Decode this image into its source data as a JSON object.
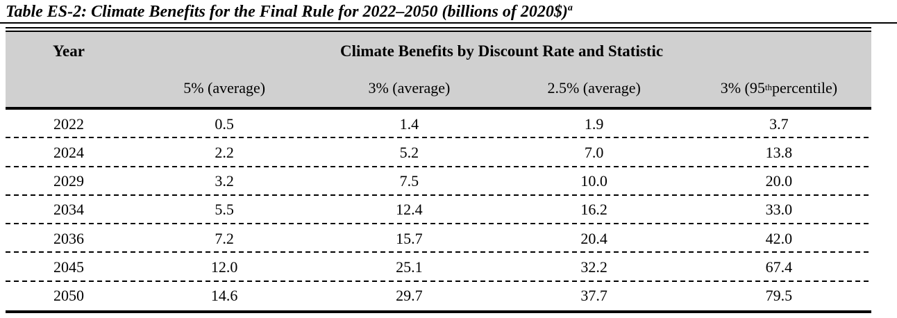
{
  "title": {
    "text": "Table ES-2: Climate Benefits for the Final Rule for 2022–2050 (billions of 2020$)",
    "footnote_marker": "a"
  },
  "table": {
    "year_header": "Year",
    "group_header": "Climate Benefits by Discount Rate and Statistic",
    "columns": [
      {
        "prefix": "5% (average)",
        "sup": "",
        "suffix": ""
      },
      {
        "prefix": "3% (average)",
        "sup": "",
        "suffix": ""
      },
      {
        "prefix": "2.5% (average)",
        "sup": "",
        "suffix": ""
      },
      {
        "prefix": "3% (95",
        "sup": "th",
        "suffix": " percentile)"
      }
    ],
    "rows": [
      {
        "year": "2022",
        "values": [
          "0.5",
          "1.4",
          "1.9",
          "3.7"
        ]
      },
      {
        "year": "2024",
        "values": [
          "2.2",
          "5.2",
          "7.0",
          "13.8"
        ]
      },
      {
        "year": "2029",
        "values": [
          "3.2",
          "7.5",
          "10.0",
          "20.0"
        ]
      },
      {
        "year": "2034",
        "values": [
          "5.5",
          "12.4",
          "16.2",
          "33.0"
        ]
      },
      {
        "year": "2036",
        "values": [
          "7.2",
          "15.7",
          "20.4",
          "42.0"
        ]
      },
      {
        "year": "2045",
        "values": [
          "12.0",
          "25.1",
          "32.2",
          "67.4"
        ]
      },
      {
        "year": "2050",
        "values": [
          "14.6",
          "29.7",
          "37.7",
          "79.5"
        ]
      }
    ]
  },
  "colors": {
    "header_bg": "#d0d0d0",
    "rule": "#000000",
    "text": "#000000",
    "page_bg": "#ffffff"
  }
}
